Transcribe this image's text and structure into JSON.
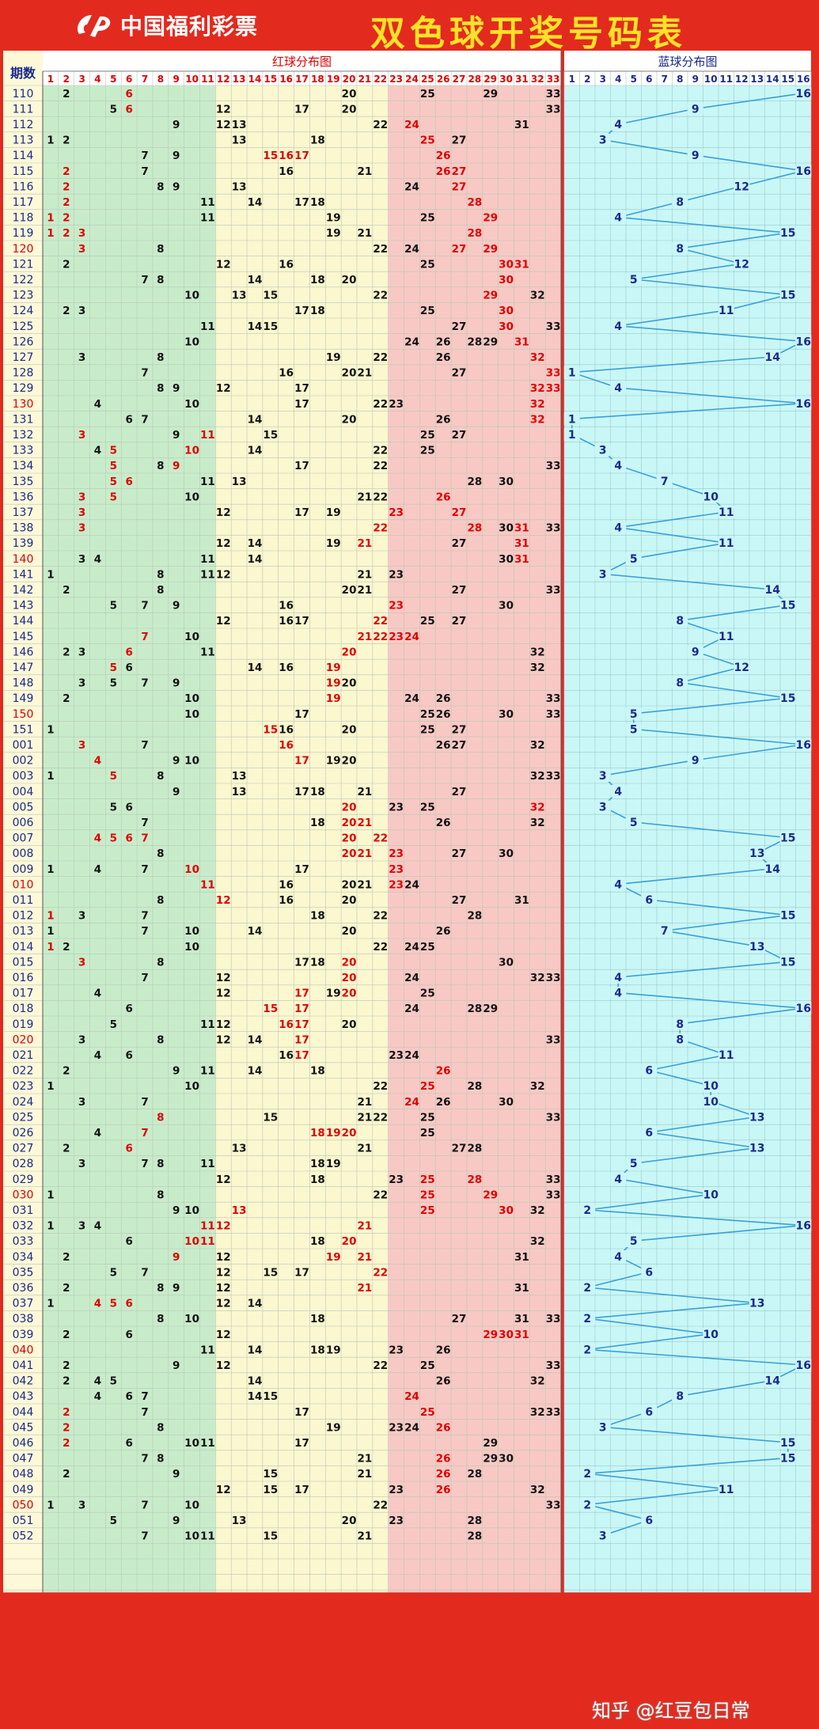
{
  "header": {
    "logo_text": "中国福利彩票",
    "title": "双色球开奖号码表"
  },
  "columns": {
    "issue_header": "期数",
    "red_header": "红球分布图",
    "blue_header": "蓝球分布图"
  },
  "colors": {
    "red_zone1": "#c8ecca",
    "red_zone2": "#fbf7cf",
    "red_zone3": "#f8c9c4",
    "blue_zone": "#c9f7f6",
    "issue_col": "#fdf8d8",
    "hot_number": "#e00000",
    "normal_number": "#111111",
    "blue_number": "#1a2a8a",
    "blue_line": "#3aa0d8",
    "frame": "#e32a1f"
  },
  "watermark": "知乎 @红豆包日常",
  "rows": [
    {
      "issue": "110",
      "reds": [
        2,
        6,
        20,
        25,
        29,
        33
      ],
      "hot": [
        6
      ],
      "blue": 16
    },
    {
      "issue": "111",
      "reds": [
        5,
        6,
        12,
        17,
        20,
        33
      ],
      "hot": [
        6
      ],
      "blue": 9
    },
    {
      "issue": "112",
      "reds": [
        9,
        12,
        13,
        22,
        24,
        31
      ],
      "hot": [
        24
      ],
      "blue": 4
    },
    {
      "issue": "113",
      "reds": [
        1,
        2,
        13,
        18,
        25,
        27
      ],
      "hot": [
        25
      ],
      "blue": 3
    },
    {
      "issue": "114",
      "reds": [
        7,
        9,
        15,
        16,
        17,
        26
      ],
      "hot": [
        15,
        16,
        17,
        26
      ],
      "blue": 9
    },
    {
      "issue": "115",
      "reds": [
        2,
        7,
        16,
        21,
        26,
        27
      ],
      "hot": [
        2,
        26,
        27
      ],
      "blue": 16
    },
    {
      "issue": "116",
      "reds": [
        2,
        8,
        9,
        13,
        24,
        27
      ],
      "hot": [
        2,
        27
      ],
      "blue": 12
    },
    {
      "issue": "117",
      "reds": [
        2,
        11,
        14,
        17,
        18,
        28
      ],
      "hot": [
        2,
        28
      ],
      "blue": 8
    },
    {
      "issue": "118",
      "reds": [
        1,
        2,
        11,
        19,
        25,
        29
      ],
      "hot": [
        1,
        2,
        29
      ],
      "blue": 4
    },
    {
      "issue": "119",
      "reds": [
        1,
        2,
        3,
        19,
        21,
        28
      ],
      "hot": [
        1,
        2,
        3,
        28
      ],
      "blue": 15
    },
    {
      "issue": "120",
      "reds": [
        3,
        8,
        22,
        24,
        27,
        29
      ],
      "hot": [
        3,
        27,
        29
      ],
      "blue": 8
    },
    {
      "issue": "121",
      "reds": [
        2,
        12,
        16,
        25,
        30,
        31
      ],
      "hot": [
        30,
        31
      ],
      "blue": 12
    },
    {
      "issue": "122",
      "reds": [
        7,
        8,
        14,
        18,
        20,
        30
      ],
      "hot": [
        30
      ],
      "blue": 5
    },
    {
      "issue": "123",
      "reds": [
        10,
        13,
        15,
        22,
        29,
        32
      ],
      "hot": [
        29
      ],
      "blue": 15
    },
    {
      "issue": "124",
      "reds": [
        2,
        3,
        17,
        18,
        25,
        30
      ],
      "hot": [
        30
      ],
      "blue": 11
    },
    {
      "issue": "125",
      "reds": [
        11,
        14,
        15,
        27,
        30,
        33
      ],
      "hot": [
        30
      ],
      "blue": 4
    },
    {
      "issue": "126",
      "reds": [
        10,
        24,
        26,
        28,
        29,
        31
      ],
      "hot": [
        31
      ],
      "blue": 16
    },
    {
      "issue": "127",
      "reds": [
        3,
        8,
        19,
        22,
        26,
        32
      ],
      "hot": [
        32
      ],
      "blue": 14
    },
    {
      "issue": "128",
      "reds": [
        7,
        16,
        20,
        21,
        27,
        33
      ],
      "hot": [
        33
      ],
      "blue": 1
    },
    {
      "issue": "129",
      "reds": [
        8,
        9,
        12,
        17,
        32,
        33
      ],
      "hot": [
        32,
        33
      ],
      "blue": 4
    },
    {
      "issue": "130",
      "reds": [
        4,
        10,
        17,
        22,
        23,
        32
      ],
      "hot": [
        32
      ],
      "blue": 16
    },
    {
      "issue": "131",
      "reds": [
        6,
        7,
        14,
        20,
        26,
        32
      ],
      "hot": [
        32
      ],
      "blue": 1
    },
    {
      "issue": "132",
      "reds": [
        3,
        9,
        11,
        15,
        25,
        27
      ],
      "hot": [
        3,
        11
      ],
      "blue": 1
    },
    {
      "issue": "133",
      "reds": [
        4,
        5,
        10,
        14,
        22,
        25
      ],
      "hot": [
        5,
        10
      ],
      "blue": 3
    },
    {
      "issue": "134",
      "reds": [
        5,
        8,
        9,
        17,
        22,
        33
      ],
      "hot": [
        5,
        9
      ],
      "blue": 4
    },
    {
      "issue": "135",
      "reds": [
        5,
        6,
        11,
        13,
        28,
        30
      ],
      "hot": [
        5,
        6
      ],
      "blue": 7
    },
    {
      "issue": "136",
      "reds": [
        3,
        5,
        10,
        21,
        22,
        26
      ],
      "hot": [
        3,
        5,
        26
      ],
      "blue": 10
    },
    {
      "issue": "137",
      "reds": [
        3,
        12,
        17,
        19,
        23,
        27
      ],
      "hot": [
        3,
        23,
        27
      ],
      "blue": 11
    },
    {
      "issue": "138",
      "reds": [
        3,
        22,
        28,
        30,
        31,
        33
      ],
      "hot": [
        3,
        22,
        28,
        31
      ],
      "blue": 4
    },
    {
      "issue": "139",
      "reds": [
        12,
        14,
        19,
        21,
        27,
        31
      ],
      "hot": [
        21,
        31
      ],
      "blue": 11
    },
    {
      "issue": "140",
      "reds": [
        3,
        4,
        11,
        14,
        30,
        31
      ],
      "hot": [
        31
      ],
      "blue": 5
    },
    {
      "issue": "141",
      "reds": [
        1,
        8,
        11,
        12,
        21,
        23
      ],
      "hot": [],
      "blue": 3
    },
    {
      "issue": "142",
      "reds": [
        2,
        8,
        20,
        21,
        27,
        33
      ],
      "hot": [],
      "blue": 14
    },
    {
      "issue": "143",
      "reds": [
        5,
        7,
        9,
        16,
        23,
        30
      ],
      "hot": [
        23
      ],
      "blue": 15
    },
    {
      "issue": "144",
      "reds": [
        12,
        16,
        17,
        22,
        25,
        27
      ],
      "hot": [
        22
      ],
      "blue": 8
    },
    {
      "issue": "145",
      "reds": [
        7,
        10,
        21,
        22,
        23,
        24
      ],
      "hot": [
        7,
        21,
        22,
        23,
        24
      ],
      "blue": 11
    },
    {
      "issue": "146",
      "reds": [
        2,
        3,
        6,
        11,
        20,
        32
      ],
      "hot": [
        6,
        20
      ],
      "blue": 9
    },
    {
      "issue": "147",
      "reds": [
        5,
        6,
        14,
        16,
        19,
        32
      ],
      "hot": [
        5,
        19
      ],
      "blue": 12
    },
    {
      "issue": "148",
      "reds": [
        3,
        5,
        7,
        9,
        19,
        20
      ],
      "hot": [
        19
      ],
      "blue": 8
    },
    {
      "issue": "149",
      "reds": [
        2,
        10,
        19,
        24,
        26,
        33
      ],
      "hot": [
        19
      ],
      "blue": 15
    },
    {
      "issue": "150",
      "reds": [
        10,
        17,
        25,
        26,
        30,
        33
      ],
      "hot": [],
      "blue": 5
    },
    {
      "issue": "151",
      "reds": [
        1,
        15,
        16,
        20,
        25,
        27
      ],
      "hot": [
        15
      ],
      "blue": 5
    },
    {
      "issue": "001",
      "reds": [
        3,
        7,
        16,
        26,
        27,
        32
      ],
      "hot": [
        3,
        16
      ],
      "blue": 16
    },
    {
      "issue": "002",
      "reds": [
        4,
        9,
        10,
        17,
        19,
        20
      ],
      "hot": [
        4,
        17
      ],
      "blue": 9
    },
    {
      "issue": "003",
      "reds": [
        1,
        5,
        8,
        13,
        32,
        33
      ],
      "hot": [
        5
      ],
      "blue": 3
    },
    {
      "issue": "004",
      "reds": [
        9,
        13,
        17,
        18,
        21,
        27
      ],
      "hot": [],
      "blue": 4
    },
    {
      "issue": "005",
      "reds": [
        5,
        6,
        20,
        23,
        25,
        32
      ],
      "hot": [
        20,
        32
      ],
      "blue": 3
    },
    {
      "issue": "006",
      "reds": [
        7,
        18,
        20,
        21,
        26,
        32
      ],
      "hot": [
        20,
        21
      ],
      "blue": 5
    },
    {
      "issue": "007",
      "reds": [
        4,
        5,
        6,
        7,
        20,
        22
      ],
      "hot": [
        4,
        5,
        6,
        7,
        20,
        22
      ],
      "blue": 15
    },
    {
      "issue": "008",
      "reds": [
        8,
        20,
        21,
        23,
        27,
        30
      ],
      "hot": [
        20,
        21,
        23
      ],
      "blue": 13
    },
    {
      "issue": "009",
      "reds": [
        1,
        4,
        7,
        10,
        17,
        23
      ],
      "hot": [
        10,
        23
      ],
      "blue": 14
    },
    {
      "issue": "010",
      "reds": [
        11,
        16,
        20,
        21,
        23,
        24
      ],
      "hot": [
        11,
        23
      ],
      "blue": 4
    },
    {
      "issue": "011",
      "reds": [
        8,
        12,
        16,
        20,
        27,
        31
      ],
      "hot": [
        12
      ],
      "blue": 6
    },
    {
      "issue": "012",
      "reds": [
        1,
        3,
        7,
        18,
        22,
        28
      ],
      "hot": [
        1
      ],
      "blue": 15
    },
    {
      "issue": "013",
      "reds": [
        1,
        7,
        10,
        14,
        20,
        26
      ],
      "hot": [],
      "blue": 7
    },
    {
      "issue": "014",
      "reds": [
        1,
        2,
        10,
        22,
        24,
        25
      ],
      "hot": [
        1
      ],
      "blue": 13
    },
    {
      "issue": "015",
      "reds": [
        3,
        8,
        17,
        18,
        20,
        30
      ],
      "hot": [
        3,
        20
      ],
      "blue": 15
    },
    {
      "issue": "016",
      "reds": [
        7,
        12,
        20,
        24,
        32,
        33
      ],
      "hot": [
        20
      ],
      "blue": 4
    },
    {
      "issue": "017",
      "reds": [
        4,
        12,
        17,
        19,
        20,
        25
      ],
      "hot": [
        17,
        20
      ],
      "blue": 4
    },
    {
      "issue": "018",
      "reds": [
        6,
        15,
        17,
        24,
        28,
        29
      ],
      "hot": [
        15,
        17
      ],
      "blue": 16
    },
    {
      "issue": "019",
      "reds": [
        5,
        11,
        12,
        16,
        17,
        20
      ],
      "hot": [
        16,
        17
      ],
      "blue": 8
    },
    {
      "issue": "020",
      "reds": [
        3,
        8,
        12,
        14,
        17,
        33
      ],
      "hot": [
        17
      ],
      "blue": 8
    },
    {
      "issue": "021",
      "reds": [
        4,
        6,
        16,
        17,
        23,
        24
      ],
      "hot": [
        17
      ],
      "blue": 11
    },
    {
      "issue": "022",
      "reds": [
        2,
        9,
        11,
        14,
        18,
        26
      ],
      "hot": [
        26
      ],
      "blue": 6
    },
    {
      "issue": "023",
      "reds": [
        1,
        10,
        22,
        25,
        28,
        32
      ],
      "hot": [
        25
      ],
      "blue": 10
    },
    {
      "issue": "024",
      "reds": [
        3,
        7,
        21,
        24,
        26,
        30
      ],
      "hot": [
        24
      ],
      "blue": 10
    },
    {
      "issue": "025",
      "reds": [
        8,
        15,
        21,
        22,
        25,
        33
      ],
      "hot": [
        8
      ],
      "blue": 13
    },
    {
      "issue": "026",
      "reds": [
        4,
        7,
        18,
        19,
        20,
        25
      ],
      "hot": [
        7,
        18,
        19,
        20
      ],
      "blue": 6
    },
    {
      "issue": "027",
      "reds": [
        2,
        6,
        13,
        21,
        27,
        28
      ],
      "hot": [
        6
      ],
      "blue": 13
    },
    {
      "issue": "028",
      "reds": [
        3,
        7,
        8,
        11,
        18,
        19
      ],
      "hot": [],
      "blue": 5
    },
    {
      "issue": "029",
      "reds": [
        12,
        18,
        23,
        25,
        28,
        33
      ],
      "hot": [
        25,
        28
      ],
      "blue": 4
    },
    {
      "issue": "030",
      "reds": [
        1,
        8,
        22,
        25,
        29,
        33
      ],
      "hot": [
        25,
        29
      ],
      "blue": 10
    },
    {
      "issue": "031",
      "reds": [
        9,
        10,
        13,
        25,
        30,
        32
      ],
      "hot": [
        13,
        25,
        30
      ],
      "blue": 2
    },
    {
      "issue": "032",
      "reds": [
        1,
        3,
        4,
        11,
        12,
        21
      ],
      "hot": [
        11,
        12,
        21
      ],
      "blue": 16
    },
    {
      "issue": "033",
      "reds": [
        6,
        10,
        11,
        18,
        20,
        32
      ],
      "hot": [
        10,
        11,
        20
      ],
      "blue": 5
    },
    {
      "issue": "034",
      "reds": [
        2,
        9,
        12,
        19,
        21,
        31
      ],
      "hot": [
        9,
        19,
        21
      ],
      "blue": 4
    },
    {
      "issue": "035",
      "reds": [
        5,
        7,
        12,
        15,
        17,
        22
      ],
      "hot": [
        22
      ],
      "blue": 6
    },
    {
      "issue": "036",
      "reds": [
        2,
        8,
        9,
        12,
        21,
        31
      ],
      "hot": [
        21
      ],
      "blue": 2
    },
    {
      "issue": "037",
      "reds": [
        1,
        4,
        5,
        6,
        12,
        14
      ],
      "hot": [
        4,
        5,
        6
      ],
      "blue": 13
    },
    {
      "issue": "038",
      "reds": [
        8,
        10,
        18,
        27,
        31,
        33
      ],
      "hot": [],
      "blue": 2
    },
    {
      "issue": "039",
      "reds": [
        2,
        6,
        12,
        29,
        30,
        31
      ],
      "hot": [
        29,
        30,
        31
      ],
      "blue": 10
    },
    {
      "issue": "040",
      "reds": [
        11,
        14,
        18,
        19,
        23,
        26
      ],
      "hot": [],
      "blue": 2
    },
    {
      "issue": "041",
      "reds": [
        2,
        9,
        12,
        22,
        25,
        33
      ],
      "hot": [],
      "blue": 16
    },
    {
      "issue": "042",
      "reds": [
        2,
        4,
        5,
        14,
        26,
        32
      ],
      "hot": [],
      "blue": 14
    },
    {
      "issue": "043",
      "reds": [
        4,
        6,
        7,
        14,
        15,
        24
      ],
      "hot": [
        24
      ],
      "blue": 8
    },
    {
      "issue": "044",
      "reds": [
        2,
        7,
        17,
        25,
        32,
        33
      ],
      "hot": [
        2,
        25
      ],
      "blue": 6
    },
    {
      "issue": "045",
      "reds": [
        2,
        8,
        19,
        23,
        24,
        26
      ],
      "hot": [
        2,
        26
      ],
      "blue": 3
    },
    {
      "issue": "046",
      "reds": [
        2,
        6,
        10,
        11,
        17,
        29
      ],
      "hot": [
        2
      ],
      "blue": 15
    },
    {
      "issue": "047",
      "reds": [
        7,
        8,
        21,
        26,
        29,
        30
      ],
      "hot": [
        26
      ],
      "blue": 15
    },
    {
      "issue": "048",
      "reds": [
        2,
        9,
        15,
        21,
        26,
        28
      ],
      "hot": [
        26
      ],
      "blue": 2
    },
    {
      "issue": "049",
      "reds": [
        12,
        15,
        17,
        23,
        26,
        32
      ],
      "hot": [
        26
      ],
      "blue": 11
    },
    {
      "issue": "050",
      "reds": [
        1,
        3,
        7,
        10,
        22,
        33
      ],
      "hot": [],
      "blue": 2
    },
    {
      "issue": "051",
      "reds": [
        5,
        9,
        13,
        20,
        23,
        28
      ],
      "hot": [],
      "blue": 6
    },
    {
      "issue": "052",
      "reds": [
        7,
        10,
        11,
        15,
        21,
        28
      ],
      "hot": [],
      "blue": 3
    }
  ]
}
